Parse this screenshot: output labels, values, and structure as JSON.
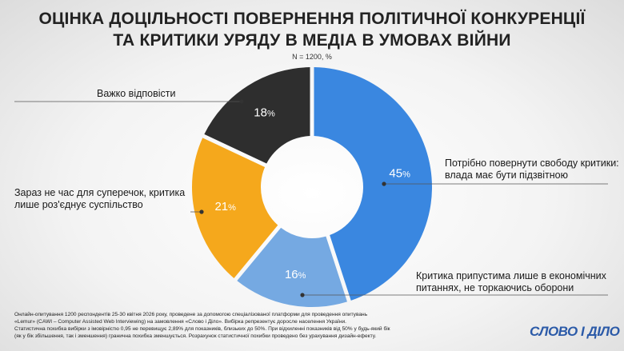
{
  "header": {
    "title_line1": "ОЦІНКА ДОЦІЛЬНОСТІ ПОВЕРНЕННЯ ПОЛІТИЧНОЇ КОНКУРЕНЦІЇ",
    "title_line2": "ТА КРИТИКИ УРЯДУ В МЕДІА В УМОВАХ ВІЙНИ",
    "subtitle": "N = 1200, %"
  },
  "chart_data": {
    "type": "pie",
    "donut": true,
    "unit": "%",
    "slices": [
      {
        "label_line1": "Потрібно повернути свободу критики:",
        "label_line2": "влада має бути підзвітною",
        "value": 45,
        "color": "#3a87e0"
      },
      {
        "label_line1": "Критика припустима лише в економічних",
        "label_line2": "питаннях, не торкаючись оборони",
        "value": 16,
        "color": "#75a9e2"
      },
      {
        "label_line1": "Зараз не час для суперечок, критика",
        "label_line2": "лише роз'єднує суспільство",
        "value": 21,
        "color": "#f5a81c"
      },
      {
        "label_line1": "Важко відповісти",
        "label_line2": "",
        "value": 18,
        "color": "#2e2e2e"
      }
    ]
  },
  "footer": {
    "line1": "Онлайн-опитування 1200 респондентів 25-30 квітня 2026 року, проведене за допомогою спеціалізованої платформи для проведення опитувань",
    "line2": "«Lemur» (CAWI – Computer Assisted Web Interviewing) на замовлення «Слово і Діло». Вибірка репрезентує доросле населення України.",
    "line3": "Статистична похибка вибірки з імовірністю 0,95 не перевищує 2,89% для показників, близьких до 50%. При відхиленні показників від 50% у будь-який бік",
    "line4": "(як у бік збільшення, так і зменшення) гранична похибка зменшується. Розрахунок статистичної похибки проведено без урахування дизайн-ефекту."
  },
  "brand": {
    "logo_text": "СЛОВО І ДІЛО"
  }
}
